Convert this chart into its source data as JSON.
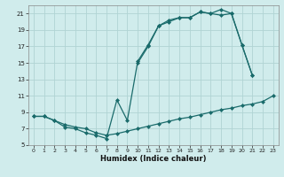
{
  "xlabel": "Humidex (Indice chaleur)",
  "bg_color": "#d0ecec",
  "grid_color": "#b0d4d4",
  "line_color": "#1a6b6b",
  "xlim": [
    -0.5,
    23.5
  ],
  "ylim": [
    5,
    22
  ],
  "xticks": [
    0,
    1,
    2,
    3,
    4,
    5,
    6,
    7,
    8,
    9,
    10,
    11,
    12,
    13,
    14,
    15,
    16,
    17,
    18,
    19,
    20,
    21,
    22,
    23
  ],
  "yticks": [
    5,
    7,
    9,
    11,
    13,
    15,
    17,
    19,
    21
  ],
  "seriesA_x": [
    0,
    1,
    2,
    3,
    4,
    5,
    6,
    7,
    8,
    9,
    10,
    11,
    12,
    13,
    14,
    15,
    16,
    17,
    18,
    19,
    20,
    21,
    22,
    23
  ],
  "seriesA_y": [
    8.5,
    8.5,
    8.0,
    7.5,
    7.2,
    7.0,
    6.5,
    6.2,
    6.4,
    6.7,
    7.0,
    7.3,
    7.6,
    7.9,
    8.2,
    8.4,
    8.7,
    9.0,
    9.3,
    9.5,
    9.8,
    10.0,
    10.3,
    11.0
  ],
  "seriesB_x": [
    0,
    1,
    2,
    3,
    4,
    5,
    6,
    7,
    8,
    9,
    10,
    11,
    12,
    13,
    14,
    15,
    16,
    17,
    18,
    19,
    20,
    21
  ],
  "seriesB_y": [
    8.5,
    8.5,
    8.0,
    7.2,
    7.0,
    6.5,
    6.2,
    5.8,
    10.5,
    8.0,
    15.2,
    17.2,
    19.5,
    20.0,
    20.5,
    20.5,
    21.2,
    21.0,
    21.5,
    21.0,
    17.2,
    13.5
  ],
  "seriesC_x": [
    10,
    11,
    12,
    13,
    14,
    15,
    16,
    17,
    18,
    19,
    20,
    21
  ],
  "seriesC_y": [
    15.0,
    17.0,
    19.5,
    20.2,
    20.5,
    20.5,
    21.2,
    21.0,
    20.8,
    21.0,
    17.2,
    13.5
  ]
}
